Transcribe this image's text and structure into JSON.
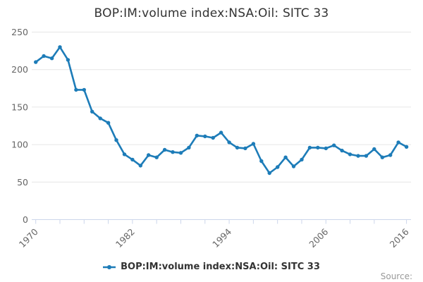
{
  "chart": {
    "title": "BOP:IM:volume index:NSA:Oil: SITC 33",
    "legend_label": "BOP:IM:volume index:NSA:Oil: SITC 33",
    "source_label": "Source:",
    "colors": {
      "series": "#1d7cb8",
      "grid": "#e6e6e6",
      "axis_line": "#ccd6eb",
      "tick_label": "#666666",
      "title_text": "#333333",
      "legend_text": "#333333",
      "source_text": "#999999",
      "background": "#ffffff"
    }
  },
  "chart_data": {
    "type": "line",
    "title": "BOP:IM:volume index:NSA:Oil: SITC 33",
    "series_name": "BOP:IM:volume index:NSA:Oil: SITC 33",
    "x": [
      1970,
      1971,
      1972,
      1973,
      1974,
      1975,
      1976,
      1977,
      1978,
      1979,
      1980,
      1981,
      1982,
      1983,
      1984,
      1985,
      1986,
      1987,
      1988,
      1989,
      1990,
      1991,
      1992,
      1993,
      1994,
      1995,
      1996,
      1997,
      1998,
      1999,
      2000,
      2001,
      2002,
      2003,
      2004,
      2005,
      2006,
      2007,
      2008,
      2009,
      2010,
      2011,
      2012,
      2013,
      2014,
      2015,
      2016
    ],
    "values": [
      210,
      218,
      215,
      230,
      213,
      173,
      173,
      144,
      135,
      129,
      106,
      87,
      80,
      72,
      86,
      83,
      93,
      90,
      89,
      96,
      112,
      111,
      109,
      116,
      103,
      96,
      95,
      101,
      78,
      62,
      70,
      83,
      71,
      80,
      96,
      96,
      95,
      99,
      92,
      87,
      85,
      85,
      94,
      83,
      86,
      103,
      97
    ],
    "xlabel": "",
    "ylabel": "",
    "ylim": [
      0,
      250
    ],
    "yticks": [
      0,
      50,
      100,
      150,
      200,
      250
    ],
    "xticks_labeled": [
      1970,
      1982,
      1994,
      2006,
      2016
    ],
    "xtick_interval_years": 3,
    "grid": true,
    "marker": "circle",
    "legend_position": "bottom"
  }
}
